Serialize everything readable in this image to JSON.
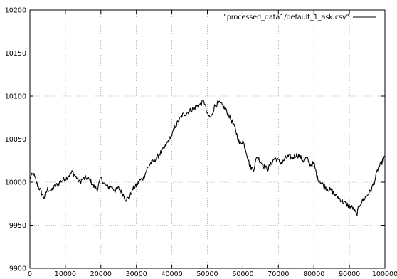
{
  "chart_data": {
    "type": "line",
    "title": "",
    "xlabel": "",
    "ylabel": "",
    "xlim": [
      0,
      100000
    ],
    "ylim": [
      9900,
      10200
    ],
    "x_ticks": [
      0,
      10000,
      20000,
      30000,
      40000,
      50000,
      60000,
      70000,
      80000,
      90000,
      100000
    ],
    "x_tick_labels": [
      "0",
      "10000",
      "20000",
      "30000",
      "40000",
      "50000",
      "60000",
      "70000",
      "80000",
      "90000",
      "100000"
    ],
    "y_ticks": [
      9900,
      9950,
      10000,
      10050,
      10100,
      10150,
      10200
    ],
    "y_tick_labels": [
      "9900",
      "9950",
      "10000",
      "10050",
      "10100",
      "10150",
      "10200"
    ],
    "grid": true,
    "legend_position": "top-right",
    "series": [
      {
        "name": "\"processed_data1/default_1_ask.csv\"",
        "color": "#000000",
        "x": [
          0,
          1000,
          2000,
          3000,
          4000,
          5000,
          6000,
          7000,
          8000,
          9000,
          10000,
          11000,
          12000,
          13000,
          14000,
          15000,
          16000,
          17000,
          18000,
          19000,
          20000,
          21000,
          22000,
          23000,
          24000,
          25000,
          26000,
          27000,
          28000,
          29000,
          30000,
          31000,
          32000,
          33000,
          34000,
          35000,
          36000,
          37000,
          38000,
          39000,
          40000,
          41000,
          42000,
          43000,
          44000,
          45000,
          46000,
          47000,
          48000,
          49000,
          50000,
          51000,
          52000,
          53000,
          54000,
          55000,
          56000,
          57000,
          58000,
          59000,
          60000,
          61000,
          62000,
          63000,
          64000,
          65000,
          66000,
          67000,
          68000,
          69000,
          70000,
          71000,
          72000,
          73000,
          74000,
          75000,
          76000,
          77000,
          78000,
          79000,
          80000,
          81000,
          82000,
          83000,
          84000,
          85000,
          86000,
          87000,
          88000,
          89000,
          90000,
          91000,
          92000,
          93000,
          94000,
          95000,
          96000,
          97000,
          98000,
          99000,
          100000
        ],
        "y": [
          10005,
          10010,
          9998,
          9990,
          9982,
          9992,
          9990,
          9995,
          9998,
          10002,
          10004,
          10008,
          10012,
          10006,
          10000,
          10004,
          10005,
          10002,
          9995,
          9992,
          10005,
          9998,
          9994,
          9995,
          9990,
          9993,
          9988,
          9980,
          9982,
          9992,
          9996,
          10002,
          10005,
          10015,
          10022,
          10025,
          10030,
          10035,
          10040,
          10048,
          10055,
          10065,
          10072,
          10078,
          10080,
          10083,
          10085,
          10088,
          10090,
          10095,
          10078,
          10075,
          10088,
          10092,
          10090,
          10085,
          10078,
          10070,
          10060,
          10045,
          10048,
          10035,
          10018,
          10015,
          10030,
          10024,
          10018,
          10015,
          10022,
          10028,
          10025,
          10022,
          10028,
          10030,
          10028,
          10032,
          10030,
          10025,
          10028,
          10020,
          10022,
          10005,
          10000,
          9995,
          9992,
          9990,
          9985,
          9982,
          9978,
          9975,
          9972,
          9970,
          9962,
          9975,
          9980,
          9985,
          9990,
          10000,
          10015,
          10022,
          10030
        ]
      }
    ]
  }
}
